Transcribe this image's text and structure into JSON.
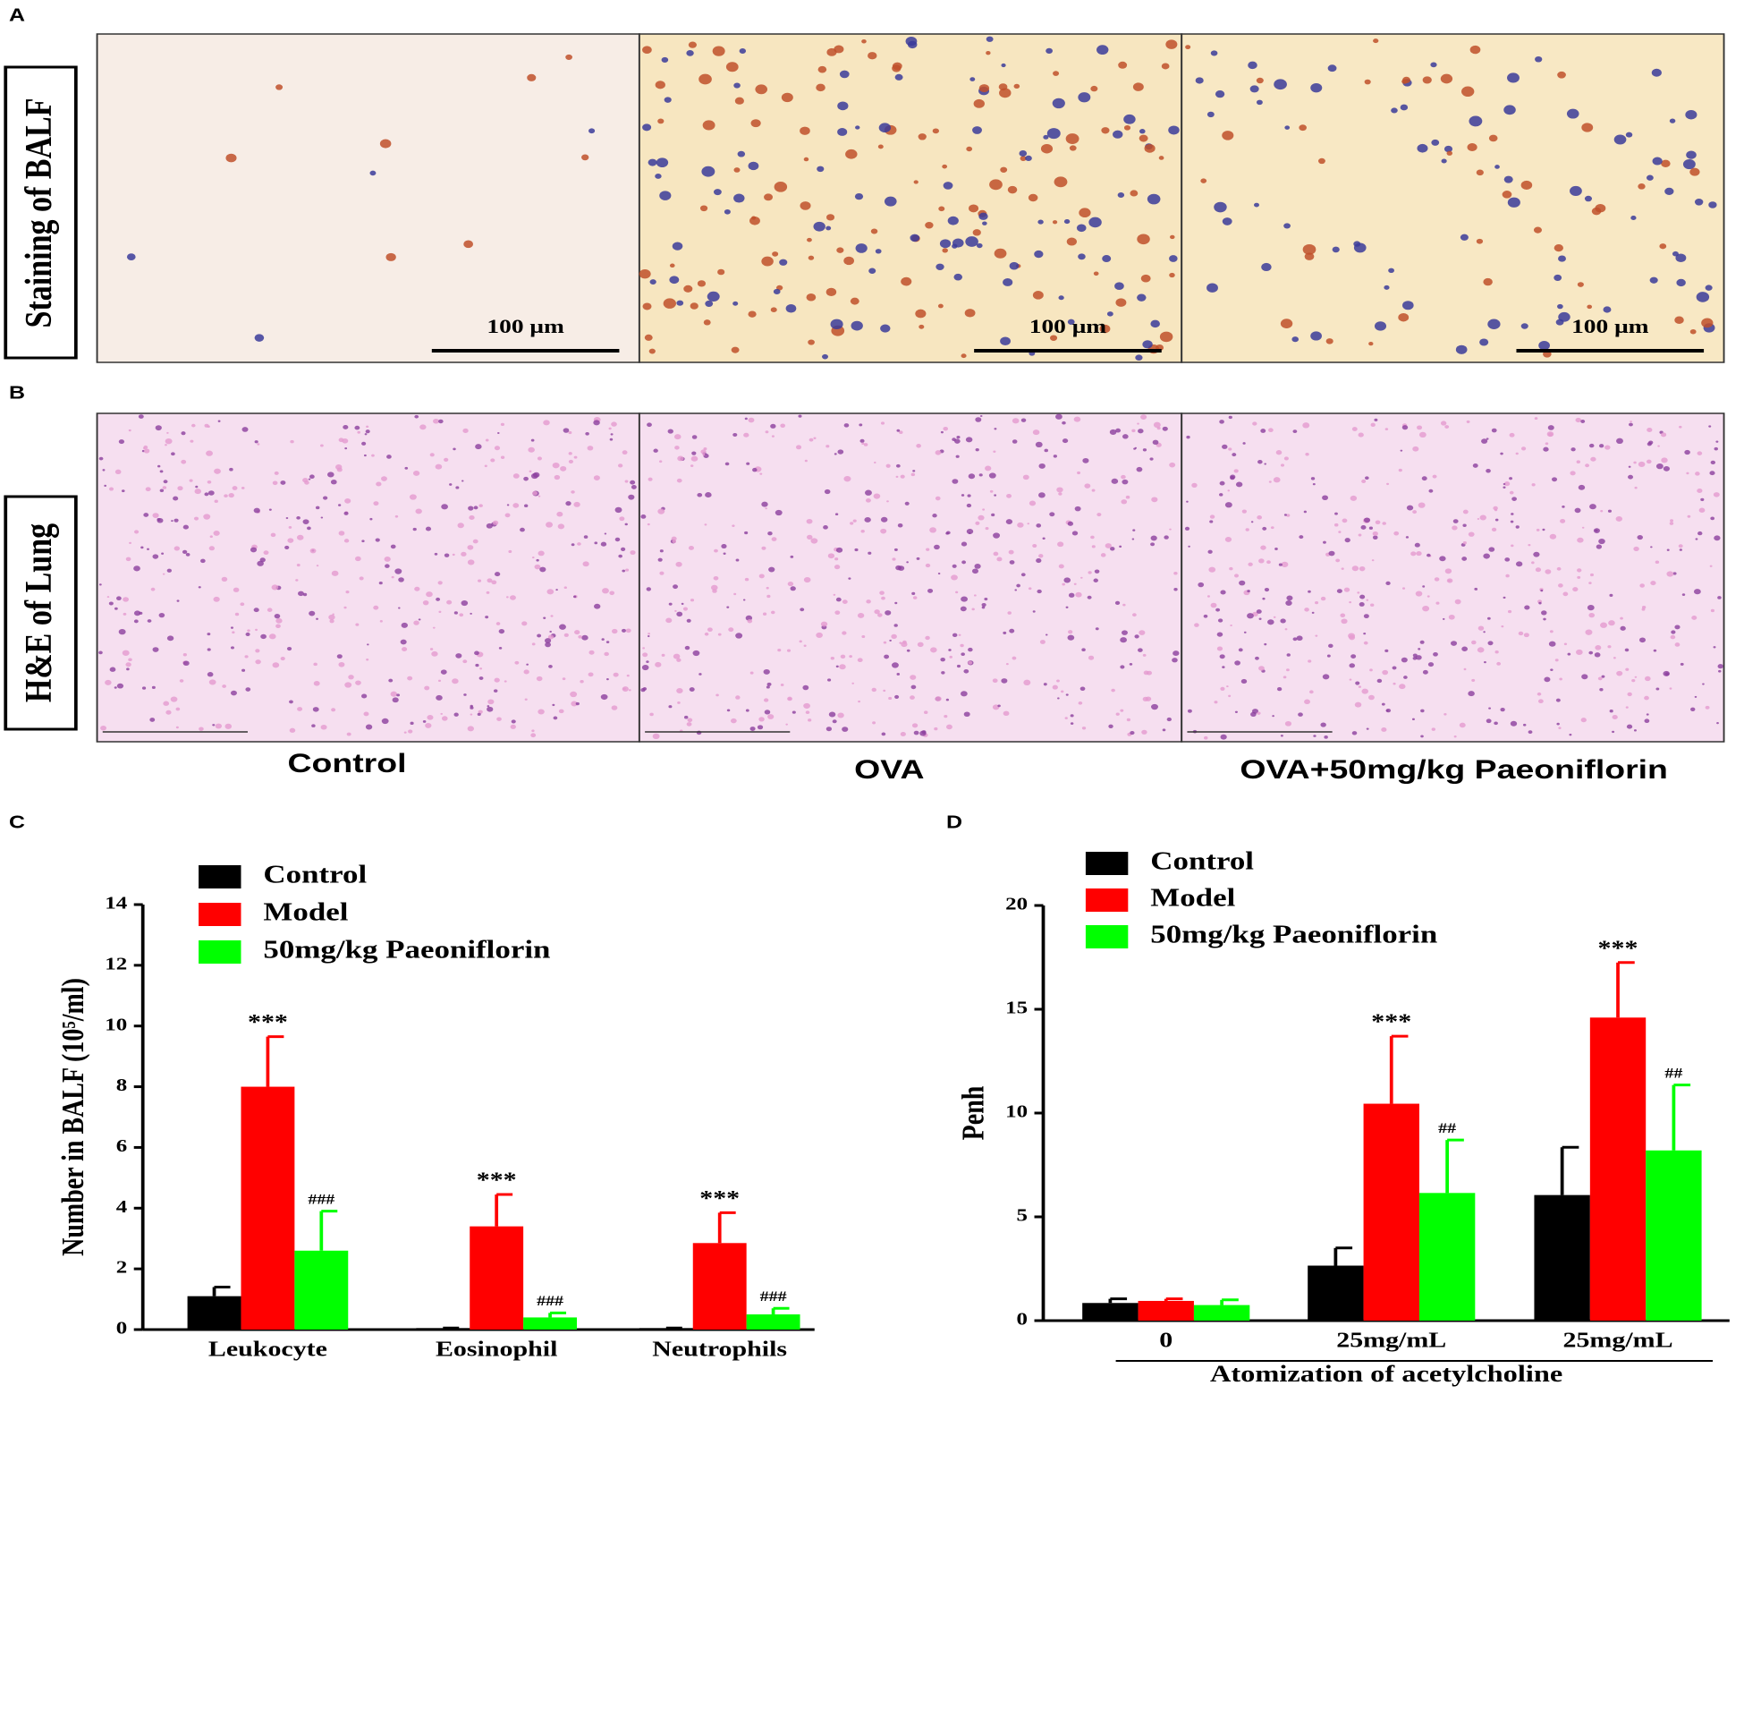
{
  "panels": {
    "labels": [
      "A",
      "B",
      "C",
      "D"
    ],
    "row_labels": [
      "Staining of BALF",
      "H&E of Lung"
    ],
    "column_labels": [
      "Control",
      "OVA",
      "OVA+50mg/kg Paeoniflorin"
    ],
    "scale_bar": "100 μm"
  },
  "chart_data": [
    {
      "type": "bar",
      "ylabel": "Number in BALF (10⁵/ml)",
      "categories": [
        "Leukocyte",
        "Eosinophil",
        "Neutrophils"
      ],
      "ylim": [
        0,
        14
      ],
      "yticks": [
        0,
        2,
        4,
        6,
        8,
        10,
        12,
        14
      ],
      "series": [
        {
          "name": "Control",
          "color": "#000000",
          "values": [
            1.1,
            0.05,
            0.05
          ],
          "errors": [
            0.3,
            0,
            0
          ]
        },
        {
          "name": "Model",
          "color": "#ff0000",
          "values": [
            8.0,
            3.4,
            2.85
          ],
          "errors": [
            1.65,
            1.05,
            1.0
          ],
          "labels": [
            "***",
            "***",
            "***"
          ]
        },
        {
          "name": "50mg/kg Paeoniflorin",
          "color": "#00ff00",
          "values": [
            2.6,
            0.4,
            0.5
          ],
          "errors": [
            1.3,
            0.15,
            0.2
          ],
          "labels": [
            "###",
            "###",
            "###"
          ]
        }
      ]
    },
    {
      "type": "bar",
      "ylabel": "Penh",
      "xlabel": "Atomization of acetylcholine",
      "categories": [
        "0",
        "25mg/mL",
        "25mg/mL"
      ],
      "ylim": [
        0,
        20
      ],
      "yticks": [
        0,
        5,
        10,
        15,
        20
      ],
      "series": [
        {
          "name": "Control",
          "color": "#000000",
          "values": [
            0.85,
            2.65,
            6.05
          ],
          "errors": [
            0.2,
            0.85,
            2.3
          ]
        },
        {
          "name": "Model",
          "color": "#ff0000",
          "values": [
            0.95,
            10.45,
            14.6
          ],
          "errors": [
            0.1,
            3.25,
            2.65
          ],
          "labels": [
            null,
            "***",
            "***"
          ]
        },
        {
          "name": "50mg/kg Paeoniflorin",
          "color": "#00ff00",
          "values": [
            0.75,
            6.15,
            8.2
          ],
          "errors": [
            0.25,
            2.55,
            3.15
          ],
          "labels": [
            null,
            "##",
            "##"
          ]
        }
      ]
    }
  ]
}
